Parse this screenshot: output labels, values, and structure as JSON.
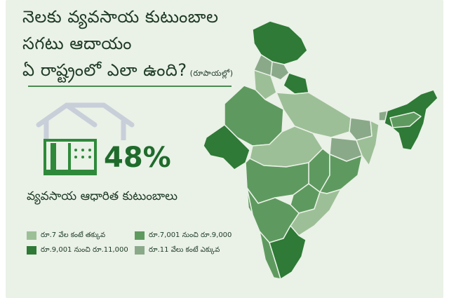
{
  "title": {
    "line1": "నెలకు వ్యవసాయ కుటుంబాల",
    "line2": "సగటు ఆదాయం",
    "line3": "ఏ రాష్ట్రంలో ఎలా ఉంది?",
    "unit": "(రూపాయల్లో)"
  },
  "stat": {
    "value": "48%",
    "label": "వ్యవసాయ ఆధారిత కుటుంబాలు"
  },
  "legend": [
    {
      "label": "రూ.7 వేల కంటే తక్కువ",
      "color": "#9dbf97"
    },
    {
      "label": "రూ.7,001 నుంచి రూ.9,000",
      "color": "#5e9a5f"
    },
    {
      "label": "రూ.9,001 నుంచి రూ.11,000",
      "color": "#2e7a36"
    },
    {
      "label": "రూ.11 వేలు కంటే ఎక్కువ",
      "color": "#8aa989"
    }
  ],
  "colors": {
    "background": "#eaf1e7",
    "text": "#1d3a25",
    "accent": "#1f6b2c",
    "house_outline": "#c9cfd9"
  },
  "icons": [
    "house-icon"
  ]
}
